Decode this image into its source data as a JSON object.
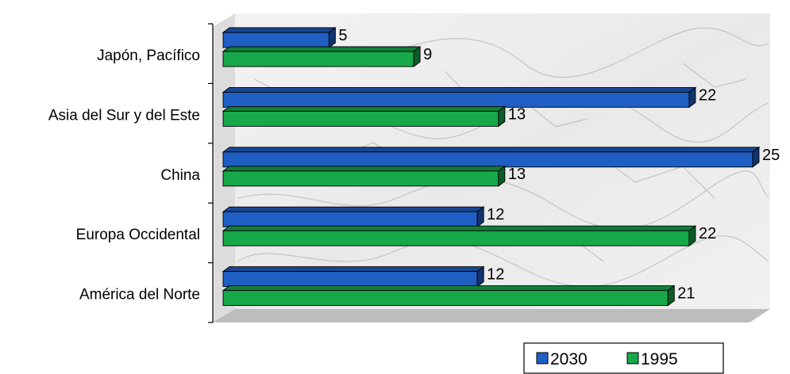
{
  "chart_data": {
    "type": "bar",
    "orientation": "horizontal",
    "three_d": true,
    "categories": [
      "Japón, Pacífico",
      "Asia del Sur y del Este",
      "China",
      "Europa Occidental",
      "América del Norte"
    ],
    "series": [
      {
        "name": "2030",
        "color": "#1f5fc4",
        "values": [
          5,
          22,
          25,
          12,
          12
        ]
      },
      {
        "name": "1995",
        "color": "#17a84a",
        "values": [
          9,
          13,
          13,
          22,
          21
        ]
      }
    ],
    "xlim": [
      0,
      25
    ],
    "grid": false,
    "legend_position": "bottom-right",
    "plot_background": "marble-texture"
  }
}
